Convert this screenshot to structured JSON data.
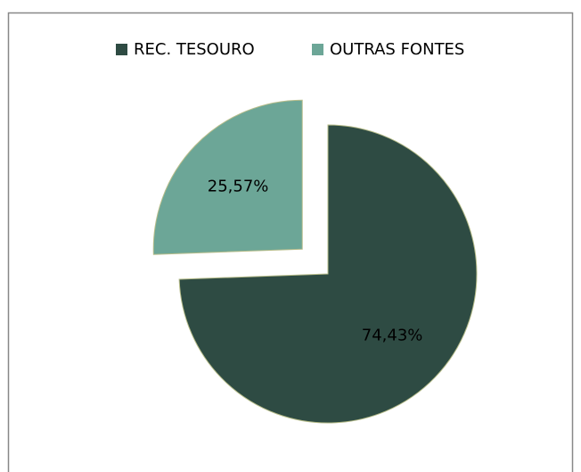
{
  "chart_data": {
    "type": "pie",
    "categories": [
      "REC. TESOURO",
      "OUTRAS FONTES"
    ],
    "values": [
      74.43,
      25.57
    ],
    "value_labels": [
      "74,43%",
      "25,57%"
    ],
    "colors": [
      "#2e4b43",
      "#6ca697"
    ],
    "legend": "top"
  }
}
